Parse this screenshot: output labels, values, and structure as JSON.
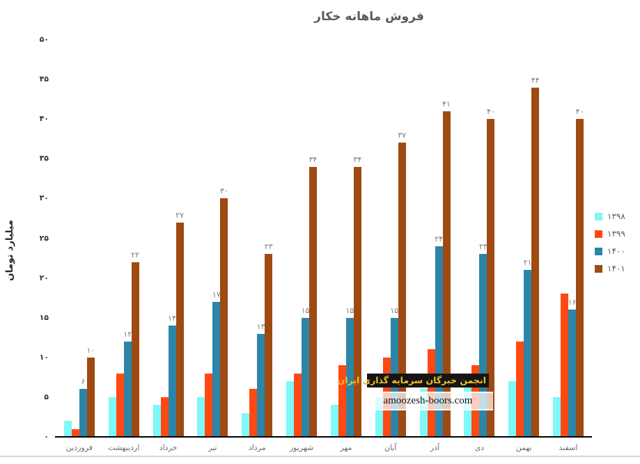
{
  "chart_data": {
    "type": "bar",
    "title": "فروش ماهانه خکار",
    "xlabel": "",
    "ylabel": "میلیارد تومان",
    "ylim": [
      0,
      50
    ],
    "grid": false,
    "legend_position": "right",
    "categories": [
      "فروردین",
      "اردیبهشت",
      "خرداد",
      "تیر",
      "مرداد",
      "شهریور",
      "مهر",
      "آبان",
      "آذر",
      "دی",
      "بهمن",
      "اسفند"
    ],
    "yticks": [
      {
        "value": 0,
        "label": "۰"
      },
      {
        "value": 5,
        "label": "۵"
      },
      {
        "value": 10,
        "label": "۱۰"
      },
      {
        "value": 15,
        "label": "۱۵"
      },
      {
        "value": 20,
        "label": "۲۰"
      },
      {
        "value": 25,
        "label": "۲۵"
      },
      {
        "value": 30,
        "label": "۳۰"
      },
      {
        "value": 35,
        "label": "۳۵"
      },
      {
        "value": 40,
        "label": "۴۰"
      },
      {
        "value": 45,
        "label": "۴۵"
      },
      {
        "value": 50,
        "label": "۵۰"
      }
    ],
    "series": [
      {
        "name": "۱۳۹۸",
        "color": "#7EF8F8",
        "values": [
          2,
          5,
          4,
          5,
          3,
          7,
          4,
          5,
          6,
          7,
          7,
          5
        ],
        "data_labels": null
      },
      {
        "name": "۱۳۹۹",
        "color": "#FF4912",
        "values": [
          1,
          8,
          5,
          8,
          6,
          8,
          9,
          10,
          11,
          9,
          12,
          18
        ],
        "data_labels": null
      },
      {
        "name": "۱۴۰۰",
        "color": "#2C85A6",
        "values": [
          6,
          12,
          14,
          17,
          13,
          15,
          15,
          15,
          24,
          23,
          21,
          16
        ],
        "data_labels": [
          "۶",
          "۱۲",
          "۱۴",
          "۱۷",
          "۱۳",
          "۱۵",
          "۱۵",
          "۱۵",
          "۲۴",
          "۲۳",
          "۲۱",
          "۱۶"
        ]
      },
      {
        "name": "۱۴۰۱",
        "color": "#9E4A12",
        "values": [
          10,
          22,
          27,
          30,
          23,
          34,
          34,
          37,
          41,
          40,
          44,
          40
        ],
        "data_labels": [
          "۱۰",
          "۲۲",
          "۲۷",
          "۳۰",
          "۲۳",
          "۳۴",
          "۳۴",
          "۳۷",
          "۴۱",
          "۴۰",
          "۴۴",
          "۴۰"
        ]
      }
    ]
  },
  "watermark": {
    "line1": "انجمن خبرگان سرمایه گذاری ایران",
    "line1_color": "#F2BF24",
    "line1_bg": "#161616",
    "line2": "amoozesh-boors.com",
    "line2_color": "#141414",
    "line2_bg": "rgba(255,255,255,0.72)"
  },
  "window": {
    "bottom_edge_color": "#ccd7e2"
  }
}
